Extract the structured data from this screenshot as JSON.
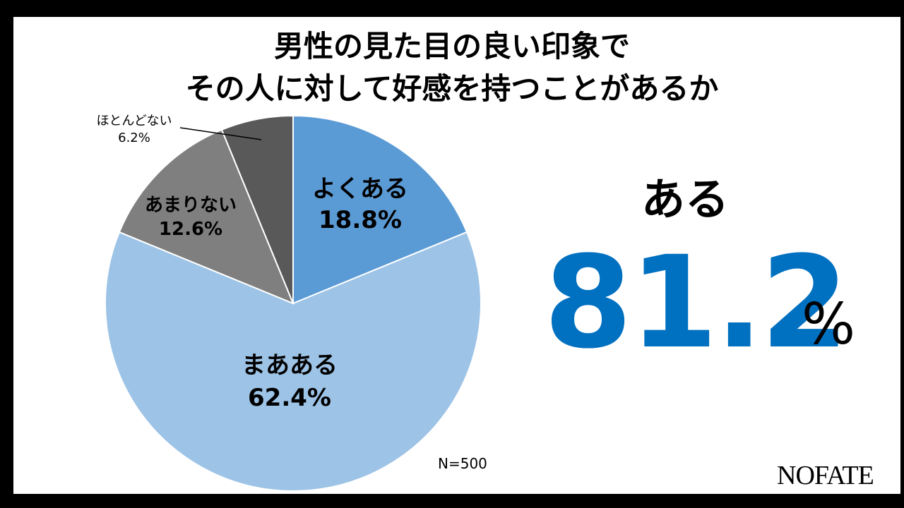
{
  "title": {
    "line1": "男性の見た目の良い印象で",
    "line2": "その人に対して好感を持つことがあるか"
  },
  "slices": [
    {
      "label": "よくある",
      "value_text": "18.8%",
      "color": "#5b9bd5"
    },
    {
      "label": "まあある",
      "value_text": "62.4%",
      "color": "#9dc3e6"
    },
    {
      "label": "あまりない",
      "value_text": "12.6%",
      "color": "#7f7f7f"
    },
    {
      "label": "ほとんどない",
      "value_text": "6.2%",
      "color": "#595959"
    }
  ],
  "highlight": {
    "label": "ある",
    "value": "81.2",
    "unit": "%",
    "color": "#0070c0"
  },
  "sample_size": "N=500",
  "brand": "NOFATE",
  "chart_data": {
    "type": "pie",
    "title": "男性の見た目の良い印象で その人に対して好感を持つことがあるか",
    "categories": [
      "よくある",
      "まあある",
      "あまりない",
      "ほとんどない"
    ],
    "values": [
      18.8,
      62.4,
      12.6,
      6.2
    ],
    "unit": "%",
    "colors": [
      "#5b9bd5",
      "#9dc3e6",
      "#7f7f7f",
      "#595959"
    ],
    "start_angle": "12 o'clock, clockwise",
    "annotations": [
      "ある 81.2%",
      "N=500"
    ],
    "legend": "none (labels on slices)"
  }
}
